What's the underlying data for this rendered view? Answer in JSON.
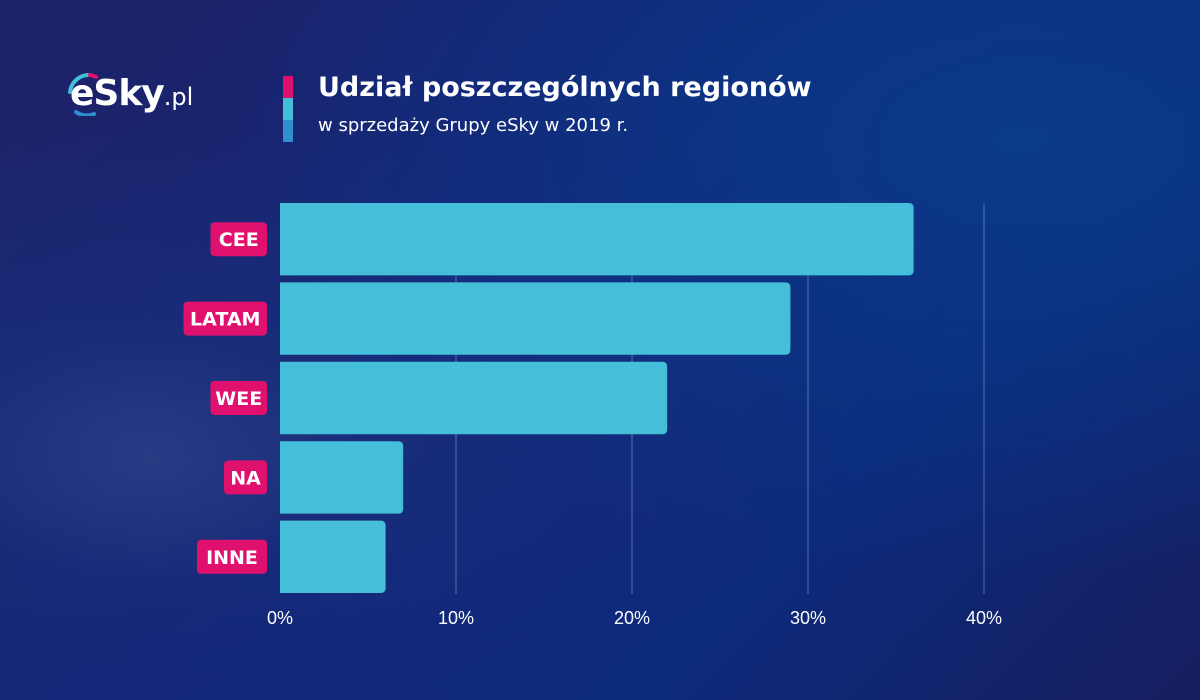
{
  "brand": {
    "logo_text": "eSky",
    "logo_suffix": ".pl",
    "accent_pink": "#e0106e",
    "accent_cyan": "#45bfd9",
    "accent_blue": "#2f8fcf"
  },
  "header": {
    "title": "Udział poszczególnych regionów",
    "subtitle": "w sprzedaży Grupy eSky w 2019 r."
  },
  "chart_data": {
    "type": "bar",
    "orientation": "horizontal",
    "title": "Udział poszczególnych regionów",
    "subtitle": "w sprzedaży Grupy eSky w 2019 r.",
    "categories": [
      "CEE",
      "LATAM",
      "WEE",
      "NA",
      "INNE"
    ],
    "values": [
      36,
      29,
      22,
      7,
      6
    ],
    "unit": "%",
    "xlim": [
      0,
      40
    ],
    "xticks": [
      0,
      10,
      20,
      30,
      40
    ],
    "xtick_labels": [
      "0%",
      "10%",
      "20%",
      "30%",
      "40%"
    ],
    "grid": true,
    "bar_color": "#45bfd9",
    "label_color": "#e0106e"
  }
}
